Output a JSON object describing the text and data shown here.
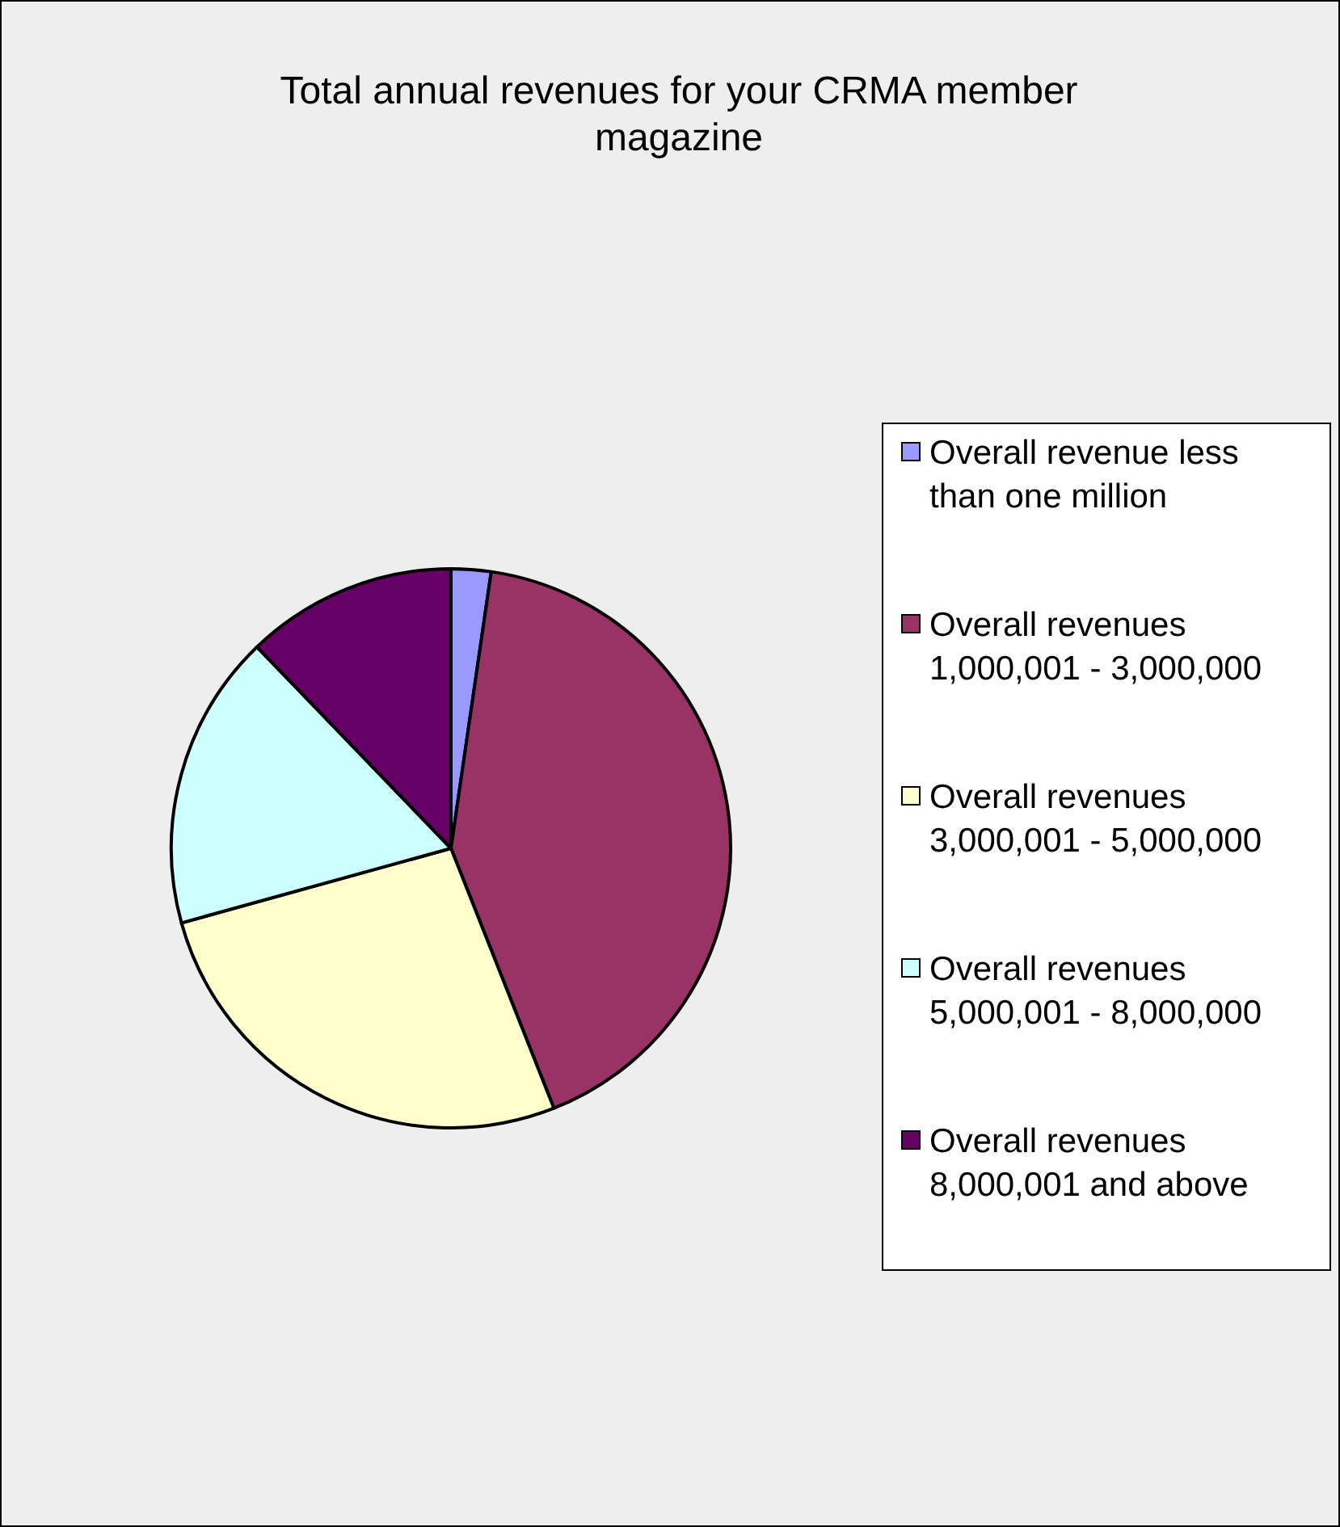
{
  "chart_data": {
    "type": "pie",
    "title": "Total annual revenues for your CRMA member magazine",
    "categories": [
      "Overall revenue less than one million",
      "Overall revenues 1,000,001 - 3,000,000",
      "Overall revenues 3,000,001 - 5,000,000",
      "Overall revenues 5,000,001 - 8,000,000",
      "Overall revenues 8,000,001 and above"
    ],
    "values": [
      2.3,
      41.7,
      26.7,
      17.1,
      12.2
    ],
    "colors": [
      "#9999ff",
      "#993366",
      "#ffffcc",
      "#ccffff",
      "#660066"
    ],
    "legend": "right"
  }
}
